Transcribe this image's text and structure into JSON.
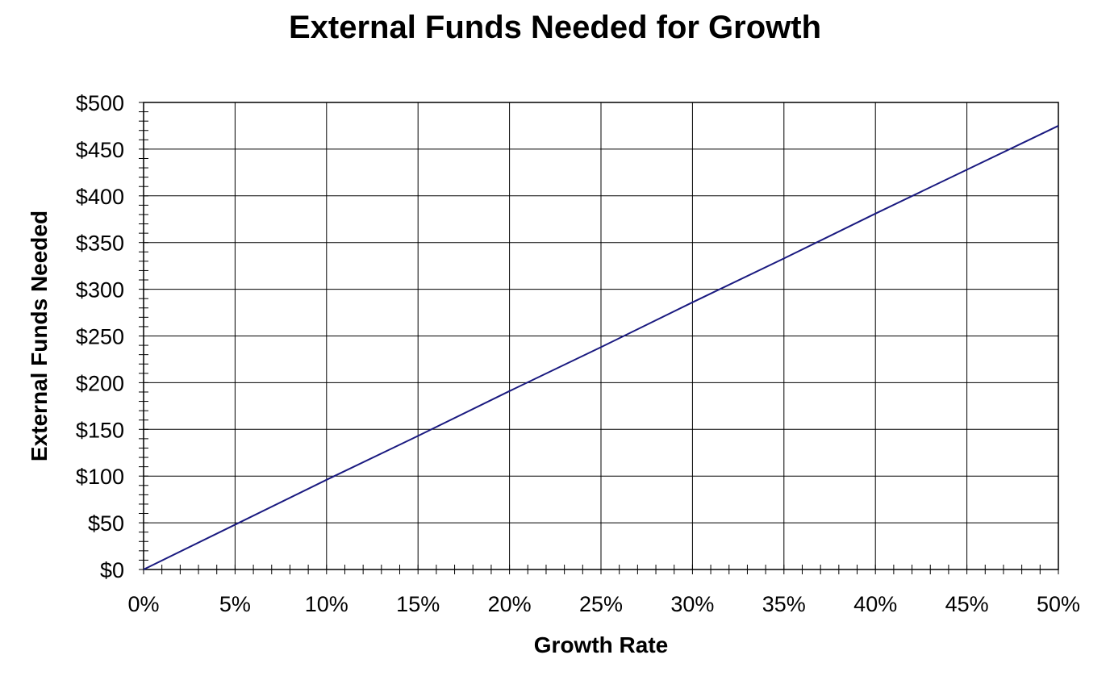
{
  "chart_data": {
    "type": "line",
    "title": "External Funds Needed for Growth",
    "xlabel": "Growth Rate",
    "ylabel": "External Funds Needed",
    "xlim": [
      0,
      50
    ],
    "ylim": [
      0,
      500
    ],
    "x_ticks": [
      "0%",
      "5%",
      "10%",
      "15%",
      "20%",
      "25%",
      "30%",
      "35%",
      "40%",
      "45%",
      "50%"
    ],
    "y_ticks": [
      "$0",
      "$50",
      "$100",
      "$150",
      "$200",
      "$250",
      "$300",
      "$350",
      "$400",
      "$450",
      "$500"
    ],
    "grid": true,
    "legend": "none",
    "line_color": "#1a1a80",
    "series": [
      {
        "x": [
          0,
          5,
          10,
          15,
          20,
          25,
          30,
          35,
          40,
          45,
          50
        ],
        "values": [
          0,
          48,
          96,
          143,
          191,
          238,
          286,
          333,
          381,
          428,
          475
        ]
      }
    ]
  }
}
